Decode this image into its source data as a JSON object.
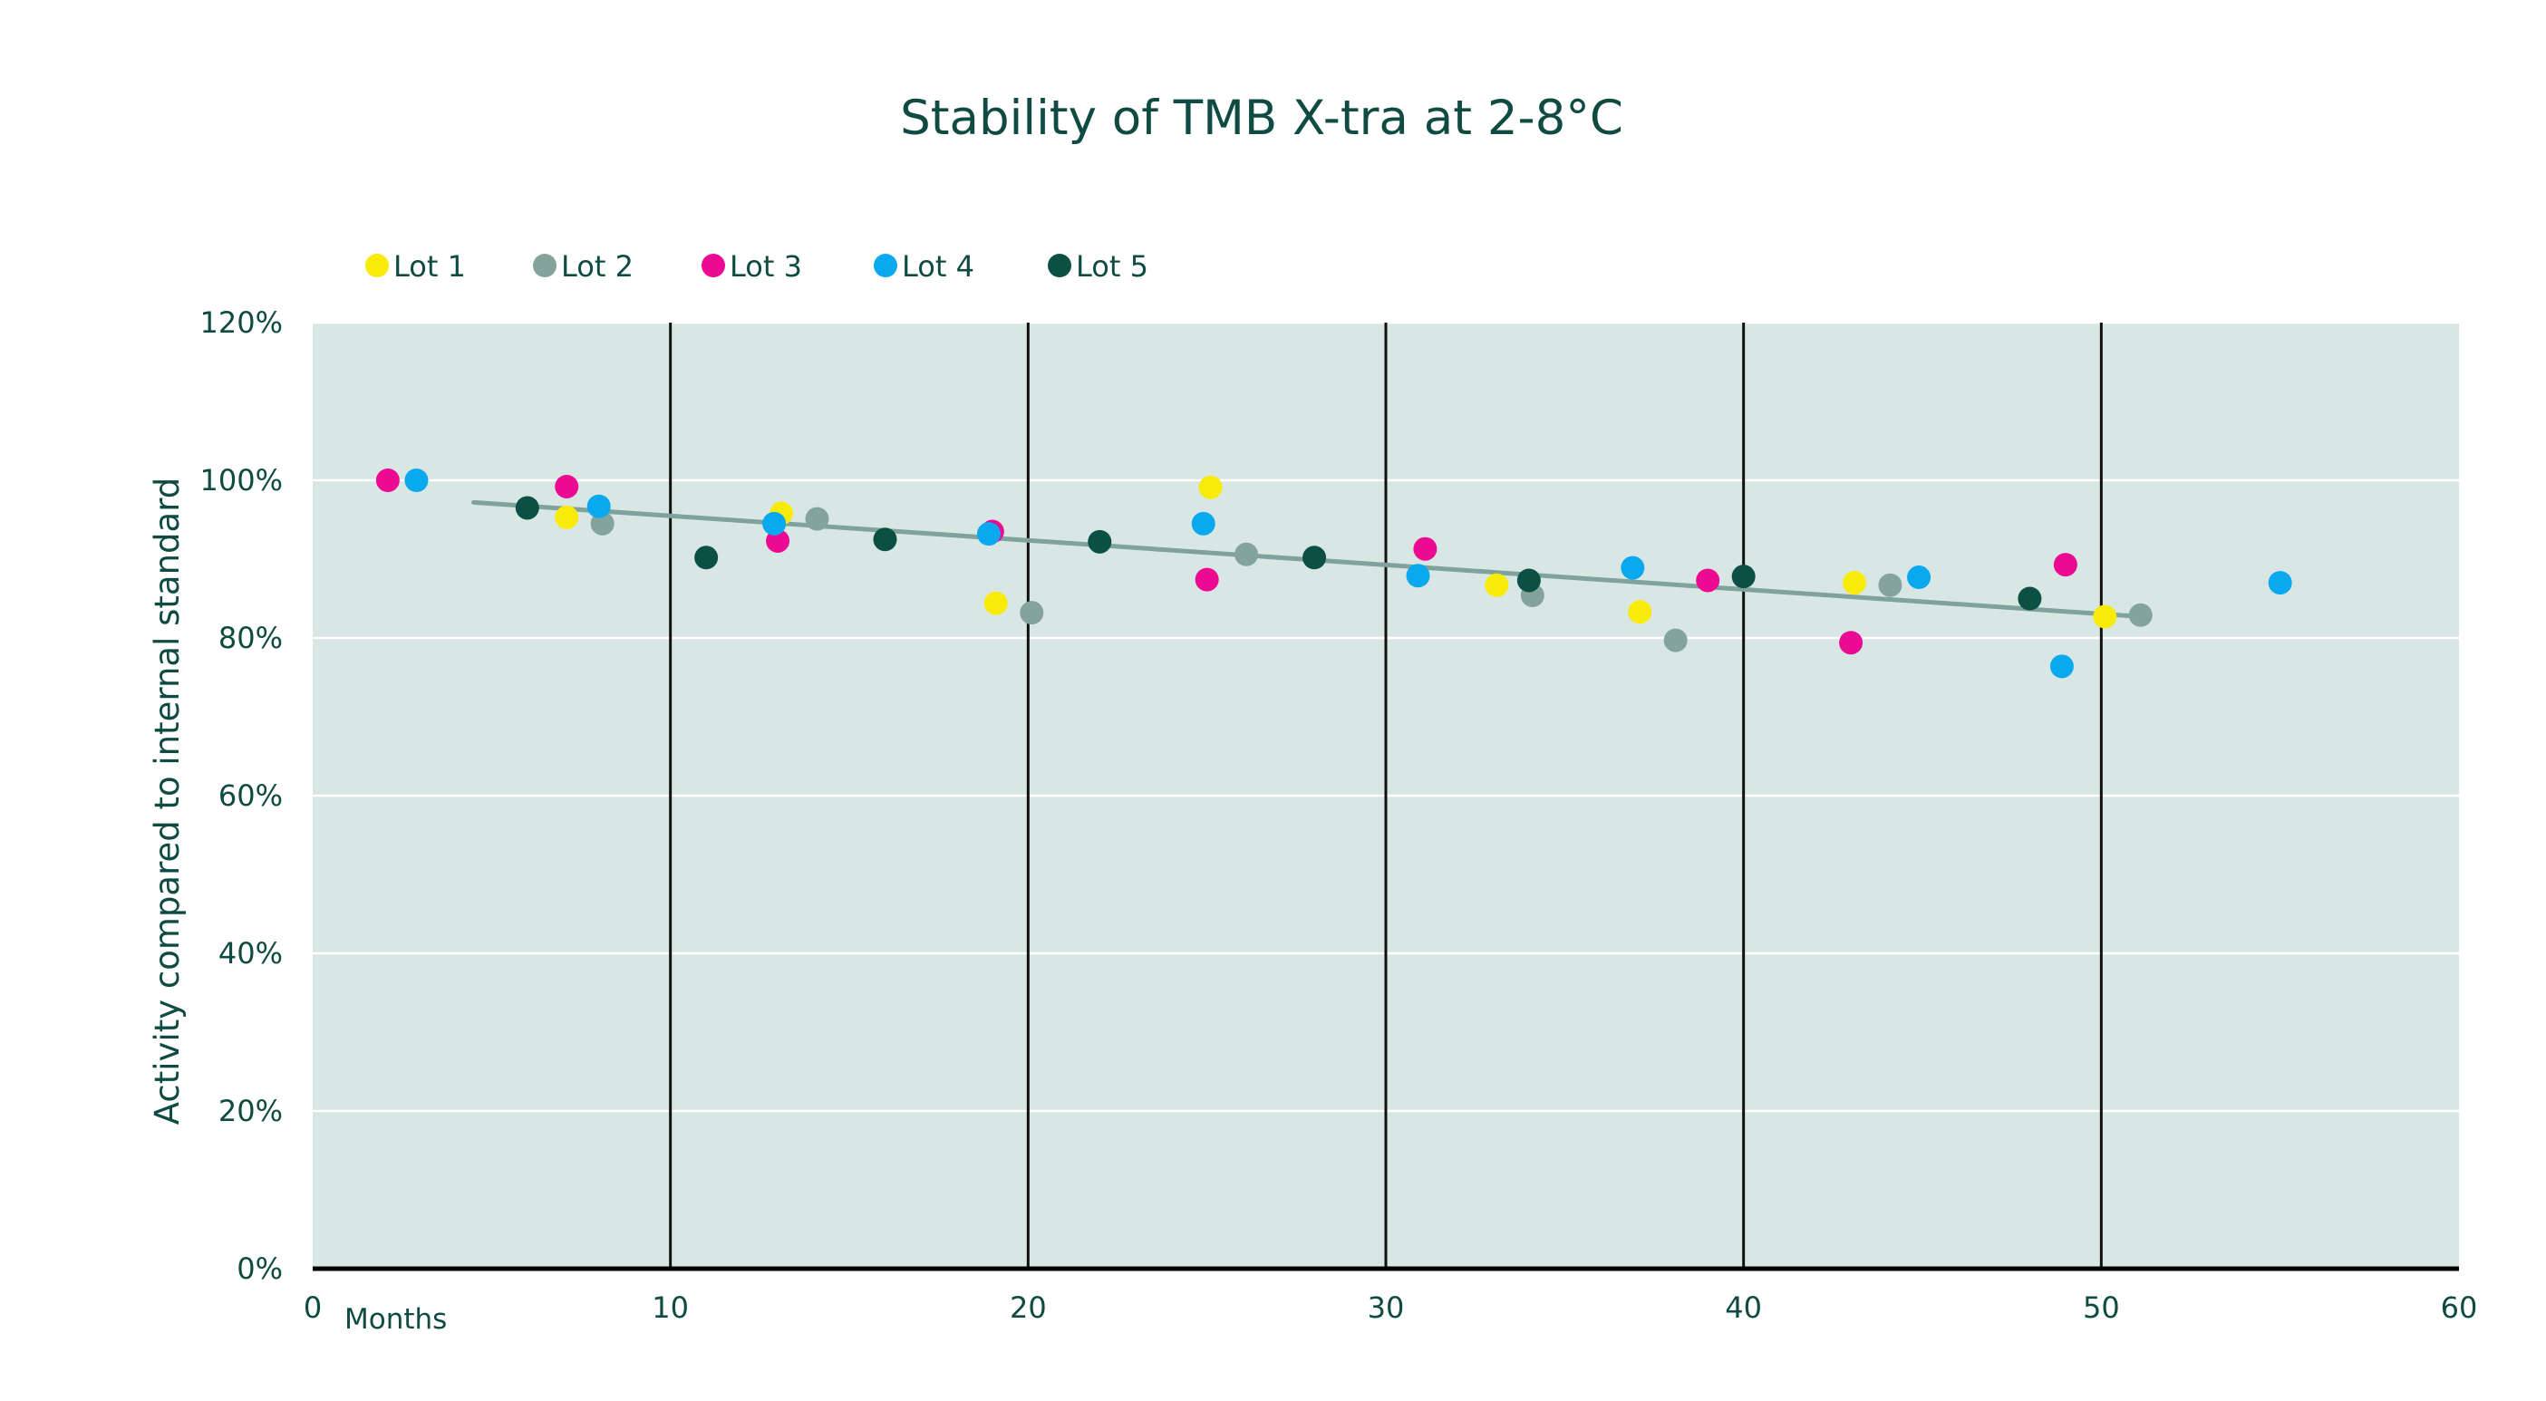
{
  "chart_data": {
    "type": "scatter",
    "title": "Stability of TMB X-tra at 2-8°C",
    "xlabel": "Months",
    "ylabel": "Activity compared to internal standard",
    "xlim": [
      0,
      60
    ],
    "ylim": [
      0,
      120
    ],
    "x_ticks": [
      0,
      10,
      20,
      30,
      40,
      50,
      60
    ],
    "x_tick_labels": [
      "0",
      "10",
      "20",
      "30",
      "40",
      "50",
      "60"
    ],
    "y_ticks": [
      0,
      20,
      40,
      60,
      80,
      100,
      120
    ],
    "y_tick_labels": [
      "0%",
      "20%",
      "40%",
      "60%",
      "80%",
      "100%",
      "120%"
    ],
    "grid": {
      "horizontal": true,
      "vertical": true
    },
    "legend_position": "top-left",
    "trendline": {
      "color": "#7fa39c",
      "points": [
        {
          "x": 4.5,
          "y": 97.2
        },
        {
          "x": 50.8,
          "y": 82.8
        }
      ]
    },
    "colors": {
      "plot_background": "#d9e7e4",
      "text": "#0f4b43",
      "axis": "#000000",
      "gridline_horizontal": "#ffffff",
      "gridline_vertical": "#111111"
    },
    "series": [
      {
        "name": "Lot 1",
        "color": "#f9eb08",
        "points": [
          {
            "x": 7.1,
            "y": 95.3
          },
          {
            "x": 13.1,
            "y": 95.8
          },
          {
            "x": 19.1,
            "y": 84.4
          },
          {
            "x": 25.1,
            "y": 99.1
          },
          {
            "x": 33.1,
            "y": 86.7
          },
          {
            "x": 37.1,
            "y": 83.3
          },
          {
            "x": 43.1,
            "y": 87.0
          },
          {
            "x": 50.1,
            "y": 82.7
          }
        ]
      },
      {
        "name": "Lot 2",
        "color": "#84a49b",
        "points": [
          {
            "x": 8.1,
            "y": 94.5
          },
          {
            "x": 14.1,
            "y": 95.1
          },
          {
            "x": 20.1,
            "y": 83.2
          },
          {
            "x": 26.1,
            "y": 90.6
          },
          {
            "x": 34.1,
            "y": 85.4
          },
          {
            "x": 38.1,
            "y": 79.7
          },
          {
            "x": 44.1,
            "y": 86.7
          },
          {
            "x": 51.1,
            "y": 82.9
          }
        ]
      },
      {
        "name": "Lot 3",
        "color": "#ec0a93",
        "points": [
          {
            "x": 2.1,
            "y": 100.0
          },
          {
            "x": 7.1,
            "y": 99.2
          },
          {
            "x": 13.0,
            "y": 92.3
          },
          {
            "x": 19.0,
            "y": 93.5
          },
          {
            "x": 25.0,
            "y": 87.4
          },
          {
            "x": 31.1,
            "y": 91.3
          },
          {
            "x": 39.0,
            "y": 87.3
          },
          {
            "x": 43.0,
            "y": 79.4
          },
          {
            "x": 49.0,
            "y": 89.3
          }
        ]
      },
      {
        "name": "Lot 4",
        "color": "#0aa9ef",
        "points": [
          {
            "x": 2.9,
            "y": 100.0
          },
          {
            "x": 8.0,
            "y": 96.7
          },
          {
            "x": 12.9,
            "y": 94.5
          },
          {
            "x": 18.9,
            "y": 93.2
          },
          {
            "x": 24.9,
            "y": 94.5
          },
          {
            "x": 30.9,
            "y": 87.9
          },
          {
            "x": 36.9,
            "y": 88.9
          },
          {
            "x": 44.9,
            "y": 87.7
          },
          {
            "x": 48.9,
            "y": 76.4
          },
          {
            "x": 55.0,
            "y": 87.0
          }
        ]
      },
      {
        "name": "Lot 5",
        "color": "#0b4f45",
        "points": [
          {
            "x": 6.0,
            "y": 96.5
          },
          {
            "x": 11.0,
            "y": 90.2
          },
          {
            "x": 16.0,
            "y": 92.5
          },
          {
            "x": 22.0,
            "y": 92.2
          },
          {
            "x": 28.0,
            "y": 90.2
          },
          {
            "x": 34.0,
            "y": 87.3
          },
          {
            "x": 40.0,
            "y": 87.8
          },
          {
            "x": 48.0,
            "y": 85.0
          }
        ]
      }
    ]
  }
}
